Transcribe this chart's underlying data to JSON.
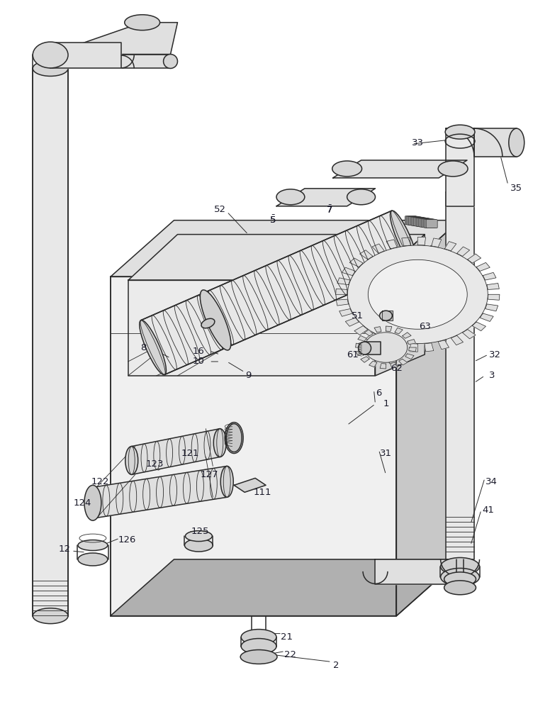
{
  "bg_color": "#ffffff",
  "lc": "#2a2a2a",
  "fig_width": 7.76,
  "fig_height": 10.0,
  "lw": 1.1,
  "lw_thin": 0.6,
  "lw_thick": 1.5,
  "gray_light": "#f0f0f0",
  "gray_mid": "#e0e0e0",
  "gray_dark": "#c8c8c8",
  "gray_darker": "#b0b0b0"
}
